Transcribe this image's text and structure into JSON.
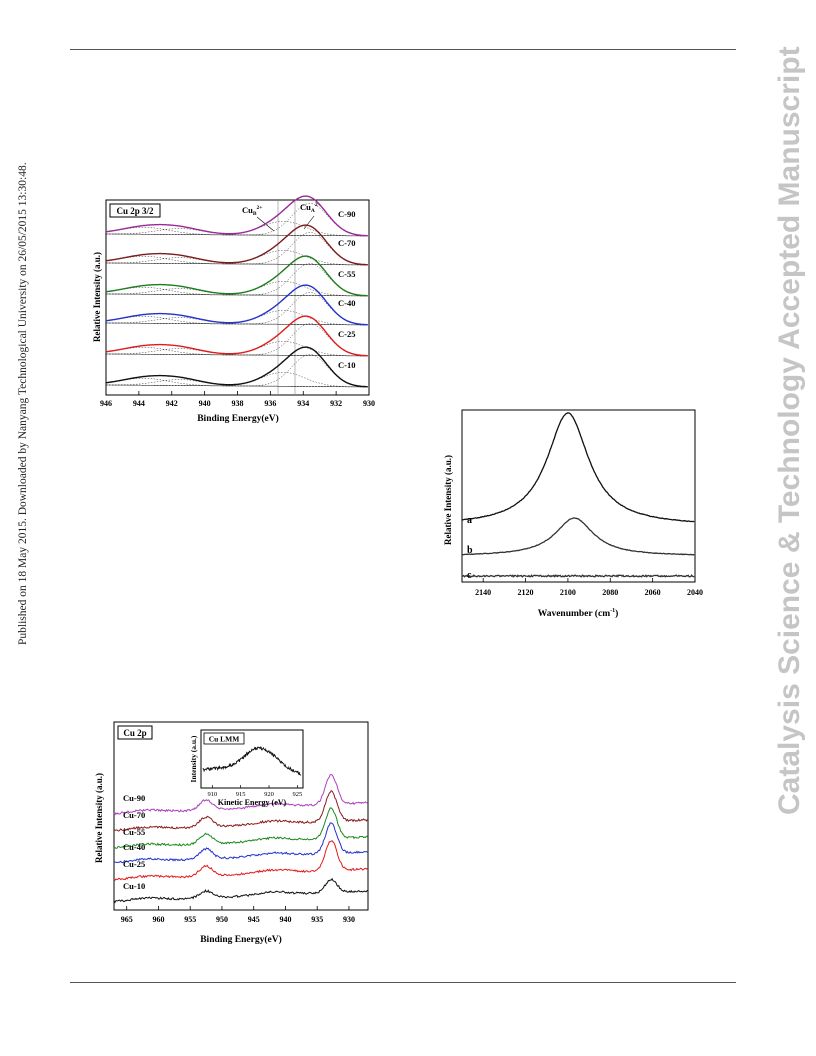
{
  "page": {
    "side_text_left": "Published on 18 May 2015. Downloaded by Nanyang Technological University on 26/05/2015 13:30:48.",
    "side_text_right": "Catalysis Science & Technology Accepted Manuscript"
  },
  "chart_data": [
    {
      "type": "line",
      "title": "Cu 2p 3/2",
      "xlabel": "Binding Energy(eV)",
      "ylabel": "Relative Intensity (a.u.)",
      "xlim": [
        946,
        930
      ],
      "xticks": [
        946,
        944,
        942,
        940,
        938,
        936,
        934,
        932,
        930
      ],
      "annotations": [
        "Cu_B 2+",
        "Cu_A 2+"
      ],
      "series": [
        {
          "name": "C-90",
          "color": "#9a2a9a"
        },
        {
          "name": "C-70",
          "color": "#7a1c1c"
        },
        {
          "name": "C-55",
          "color": "#1d7d1d"
        },
        {
          "name": "C-40",
          "color": "#2233cc"
        },
        {
          "name": "C-25",
          "color": "#e01b1b"
        },
        {
          "name": "C-10",
          "color": "#111111"
        }
      ]
    },
    {
      "type": "line",
      "xlabel": "Wavenumber (cm⁻¹)",
      "ylabel": "Relative Intensity (a.u.)",
      "xlim": [
        2150,
        2040
      ],
      "xticks": [
        2140,
        2120,
        2100,
        2080,
        2060,
        2040
      ],
      "series": [
        {
          "name": "a",
          "peak_x": 2100
        },
        {
          "name": "b",
          "peak_x": 2097
        },
        {
          "name": "c"
        }
      ]
    },
    {
      "type": "line",
      "title": "Cu 2p",
      "xlabel": "Binding Energy(eV)",
      "ylabel": "Relative Intensity (a.u.)",
      "xlim": [
        967,
        927
      ],
      "xticks": [
        965,
        960,
        955,
        950,
        945,
        940,
        935,
        930
      ],
      "peaks_x": [
        952.5,
        932.8
      ],
      "series": [
        {
          "name": "Cu-90",
          "color": "#b040c0"
        },
        {
          "name": "Cu-70",
          "color": "#8a1c1c"
        },
        {
          "name": "Cu-55",
          "color": "#1d8a1d"
        },
        {
          "name": "Cu-40",
          "color": "#2233cc"
        },
        {
          "name": "Cu-25",
          "color": "#e01b1b"
        },
        {
          "name": "Cu-10",
          "color": "#111111"
        }
      ],
      "inset": {
        "title": "Cu LMM",
        "xlabel": "Kinetic Energy (eV)",
        "ylabel": "Intensity (a.u.)",
        "xlim": [
          908,
          926
        ],
        "xticks": [
          910,
          915,
          920,
          925
        ],
        "peak_x": 918
      }
    }
  ]
}
